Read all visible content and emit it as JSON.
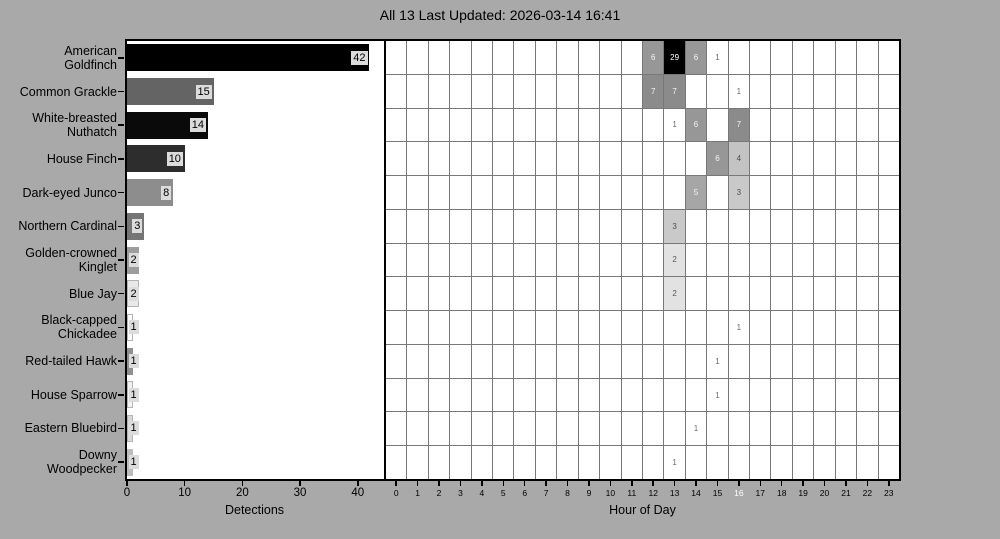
{
  "title": "All 13 Last Updated: 2026-03-14 16:41",
  "colors": {
    "figure_background": "#a9a9a9",
    "plot_background": "#ffffff",
    "spine": "#000000",
    "heat_grid_line": "#787878",
    "bar_value_label_background": "#dcdcdc",
    "highlighted_hour_tick_color": "#ffffff"
  },
  "chart_data": [
    {
      "type": "bar",
      "orientation": "horizontal",
      "xlabel": "Detections",
      "xticks": [
        "0",
        "10",
        "20",
        "30",
        "40"
      ],
      "xlim": [
        0,
        44.2
      ],
      "categories": [
        "American Goldfinch",
        "Common Grackle",
        "White-breasted Nuthatch",
        "House Finch",
        "Dark-eyed Junco",
        "Northern Cardinal",
        "Golden-crowned Kinglet",
        "Blue Jay",
        "Black-capped Chickadee",
        "Red-tailed Hawk",
        "House Sparrow",
        "Eastern Bluebird",
        "Downy Woodpecker"
      ],
      "category_lines": [
        [
          "American",
          "Goldfinch"
        ],
        [
          "Common Grackle"
        ],
        [
          "White-breasted",
          "Nuthatch"
        ],
        [
          "House Finch"
        ],
        [
          "Dark-eyed Junco"
        ],
        [
          "Northern Cardinal"
        ],
        [
          "Golden-crowned",
          "Kinglet"
        ],
        [
          "Blue Jay"
        ],
        [
          "Black-capped",
          "Chickadee"
        ],
        [
          "Red-tailed Hawk"
        ],
        [
          "House Sparrow"
        ],
        [
          "Eastern Bluebird"
        ],
        [
          "Downy",
          "Woodpecker"
        ]
      ],
      "values": [
        42,
        15,
        14,
        10,
        8,
        3,
        2,
        2,
        1,
        1,
        1,
        1,
        1
      ],
      "bar_colors": [
        "#000000",
        "#646464",
        "#0a0a0a",
        "#2d2d2d",
        "#8d8d8d",
        "#757575",
        "#9d9d9d",
        "#e8e8e8",
        "#fafafa",
        "#909090",
        "#f2f2f2",
        "#d9d9d9",
        "#bdbdbd"
      ]
    },
    {
      "type": "heatmap",
      "xlabel": "Hour of Day",
      "hour_ticks": [
        "0",
        "1",
        "2",
        "3",
        "4",
        "5",
        "6",
        "7",
        "8",
        "9",
        "10",
        "11",
        "12",
        "13",
        "14",
        "15",
        "16",
        "17",
        "18",
        "19",
        "20",
        "21",
        "22",
        "23"
      ],
      "highlighted_hour": "16",
      "rows": [
        {
          "species": "American Goldfinch",
          "cells": [
            {
              "hour": 12,
              "value": 6
            },
            {
              "hour": 13,
              "value": 29
            },
            {
              "hour": 14,
              "value": 6
            },
            {
              "hour": 15,
              "value": 1
            }
          ]
        },
        {
          "species": "Common Grackle",
          "cells": [
            {
              "hour": 12,
              "value": 7
            },
            {
              "hour": 13,
              "value": 7
            },
            {
              "hour": 16,
              "value": 1
            }
          ]
        },
        {
          "species": "White-breasted Nuthatch",
          "cells": [
            {
              "hour": 13,
              "value": 1
            },
            {
              "hour": 14,
              "value": 6
            },
            {
              "hour": 16,
              "value": 7
            }
          ]
        },
        {
          "species": "House Finch",
          "cells": [
            {
              "hour": 15,
              "value": 6
            },
            {
              "hour": 16,
              "value": 4
            }
          ]
        },
        {
          "species": "Dark-eyed Junco",
          "cells": [
            {
              "hour": 14,
              "value": 5
            },
            {
              "hour": 16,
              "value": 3
            }
          ]
        },
        {
          "species": "Northern Cardinal",
          "cells": [
            {
              "hour": 13,
              "value": 3
            }
          ]
        },
        {
          "species": "Golden-crowned Kinglet",
          "cells": [
            {
              "hour": 13,
              "value": 2
            }
          ]
        },
        {
          "species": "Blue Jay",
          "cells": [
            {
              "hour": 13,
              "value": 2
            }
          ]
        },
        {
          "species": "Black-capped Chickadee",
          "cells": [
            {
              "hour": 16,
              "value": 1
            }
          ]
        },
        {
          "species": "Red-tailed Hawk",
          "cells": [
            {
              "hour": 15,
              "value": 1
            }
          ]
        },
        {
          "species": "House Sparrow",
          "cells": [
            {
              "hour": 15,
              "value": 1
            }
          ]
        },
        {
          "species": "Eastern Bluebird",
          "cells": [
            {
              "hour": 14,
              "value": 1
            }
          ]
        },
        {
          "species": "Downy Woodpecker",
          "cells": [
            {
              "hour": 13,
              "value": 1
            }
          ]
        }
      ],
      "value_styles": {
        "1": {
          "bg": "#ffffff",
          "fg": "#6e6e6e"
        },
        "2": {
          "bg": "#e2e2e2",
          "fg": "#555555"
        },
        "3": {
          "bg": "#c9c9c9",
          "fg": "#4d4d4d"
        },
        "4": {
          "bg": "#c3c3c3",
          "fg": "#4d4d4d"
        },
        "5": {
          "bg": "#a6a6a6",
          "fg": "#f5f5f5"
        },
        "6": {
          "bg": "#979797",
          "fg": "#f5f5f5"
        },
        "7": {
          "bg": "#8b8b8b",
          "fg": "#f5f5f5"
        },
        "29": {
          "bg": "#000000",
          "fg": "#ffffff"
        }
      }
    }
  ]
}
